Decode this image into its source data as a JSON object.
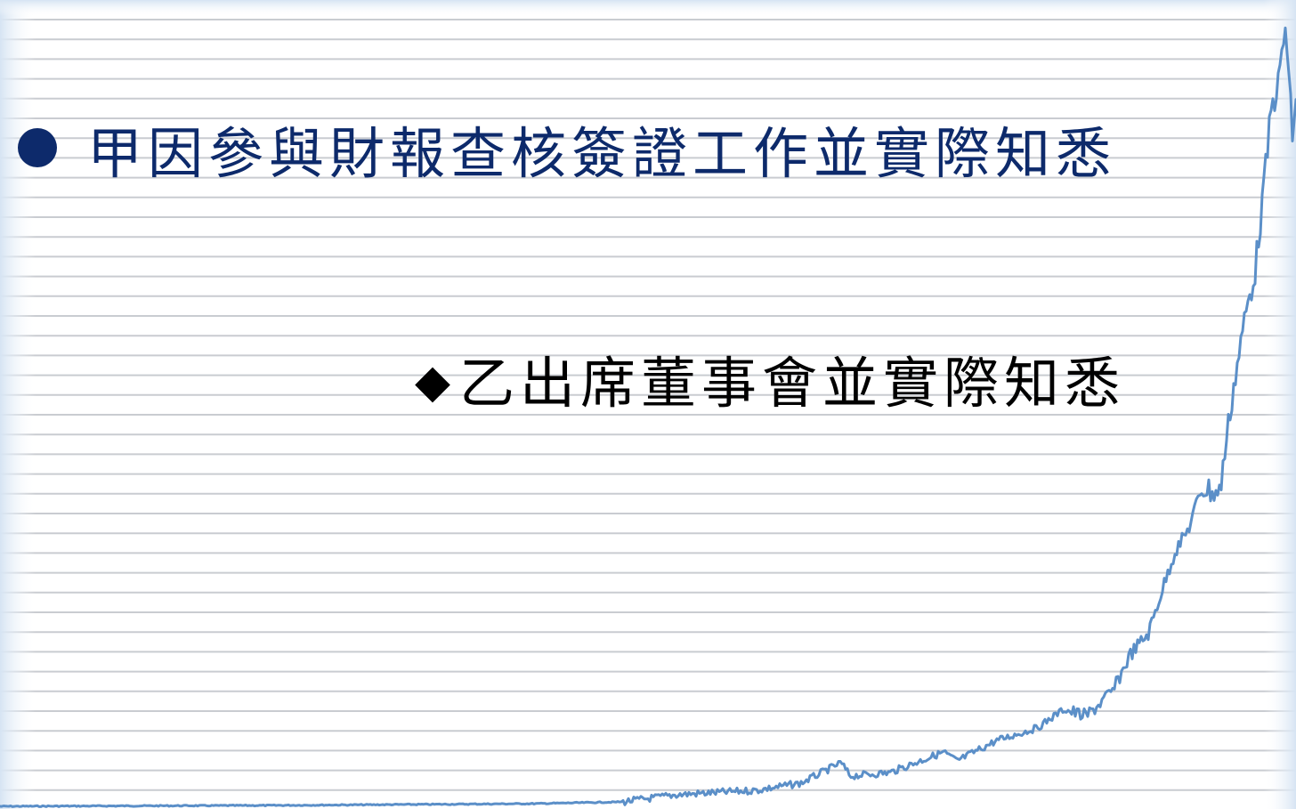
{
  "slide": {
    "bullets": [
      {
        "marker": "●",
        "text": "甲因參與財報查核簽證工作並實際知悉",
        "color": "#0d2a6b"
      },
      {
        "marker": "◆",
        "text": "乙出席董事會並實際知悉",
        "color": "#000000"
      }
    ]
  },
  "decoration": {
    "background_graph": "rising-price-line",
    "line_color": "#5b8fc8",
    "rule_color": "#c9ccd1",
    "edge_glow_color": "#dce8f5"
  }
}
